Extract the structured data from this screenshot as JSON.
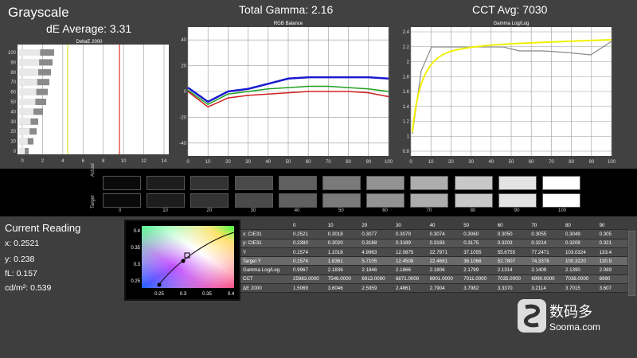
{
  "header": {
    "grayscale_title": "Grayscale",
    "de_average": "dE Average: 3.31",
    "total_gamma": "Total Gamma: 2.16",
    "cct_avg": "CCT Avg: 7030"
  },
  "deltae_chart": {
    "title": "DeltaE 2000",
    "xticks": [
      "0",
      "2",
      "4",
      "6",
      "8",
      "10",
      "12",
      "14"
    ],
    "yticks": [
      "100",
      "90",
      "80",
      "70",
      "60",
      "50",
      "40",
      "30",
      "20",
      "10",
      "0"
    ]
  },
  "rgb_chart": {
    "title": "RGB Balance",
    "yticks": [
      "40",
      "20",
      "0",
      "-20",
      "-40"
    ],
    "xticks": [
      "0",
      "10",
      "20",
      "30",
      "40",
      "50",
      "60",
      "70",
      "80",
      "90",
      "100"
    ]
  },
  "gamma_chart": {
    "title": "Gamma Log/Log",
    "yticks": [
      "2.4",
      "2.2",
      "2",
      "1.8",
      "1.6",
      "1.4",
      "1.2",
      "1",
      "0.8"
    ],
    "xticks": [
      "0",
      "10",
      "20",
      "30",
      "40",
      "50",
      "60",
      "70",
      "80",
      "90",
      "100"
    ]
  },
  "swatches": {
    "actual_label": "Actual",
    "target_label": "Target",
    "labels": [
      "0",
      "10",
      "20",
      "30",
      "40",
      "50",
      "60",
      "70",
      "80",
      "90",
      "100"
    ],
    "colors": [
      "#0a0a0a",
      "#1d1d1d",
      "#333333",
      "#4a4a4a",
      "#606060",
      "#7a7a7a",
      "#939393",
      "#adadad",
      "#c8c8c8",
      "#e3e3e3",
      "#ffffff"
    ]
  },
  "reading": {
    "title": "Current Reading",
    "x": "x: 0.2521",
    "y": "y: 0.238",
    "fl": "fL: 0.157",
    "cd": "cd/m²: 0.539"
  },
  "cie": {
    "yticks": [
      "0.4",
      "0.35",
      "0.3",
      "0.25"
    ],
    "xticks": [
      "0.25",
      "0.3",
      "0.35",
      "0.4"
    ]
  },
  "table": {
    "header": [
      "",
      "0",
      "10",
      "20",
      "30",
      "40",
      "50",
      "60",
      "70",
      "80",
      "90"
    ],
    "rows": [
      [
        "x: CIE31",
        "0.2521",
        "0.3018",
        "0.3077",
        "0.3079",
        "0.3074",
        "0.3060",
        "0.3050",
        "0.3055",
        "0.3049",
        "0.305"
      ],
      [
        "y: CIE31",
        "0.2380",
        "0.3020",
        "0.3168",
        "0.3189",
        "0.3193",
        "0.3175",
        "0.3203",
        "0.3214",
        "0.3208",
        "0.321"
      ],
      [
        "Y",
        "0.1574",
        "1.1018",
        "4.9963",
        "12.0875",
        "22.7971",
        "37.1055",
        "55.6755",
        "77.2471",
        "103.0324",
        "133.4"
      ],
      [
        "Target Y",
        "0.1574",
        "1.8361",
        "5.7105",
        "12.4508",
        "22.4681",
        "36.1068",
        "52.7807",
        "74.3378",
        "100.3220",
        "130.9"
      ],
      [
        "Gamma Log/Log",
        "0.9967",
        "2.1836",
        "2.1846",
        "2.1866",
        "2.1806",
        "2.1799",
        "2.1314",
        "2.1409",
        "2.1390",
        "2.089"
      ],
      [
        "CCT",
        "25983.0000",
        "7546.0000",
        "6913.0000",
        "6871.0000",
        "6901.0000",
        "7011.0000",
        "7035.0000",
        "6990.0000",
        "7038.0000",
        "6990"
      ],
      [
        "ΔE 2000",
        "1.5069",
        "3.6046",
        "2.5959",
        "2.4861",
        "2.7904",
        "3.7982",
        "3.3370",
        "3.2114",
        "3.7015",
        "3.607"
      ]
    ]
  },
  "watermark": {
    "cn": "数码多",
    "en": "Sooma.com"
  }
}
